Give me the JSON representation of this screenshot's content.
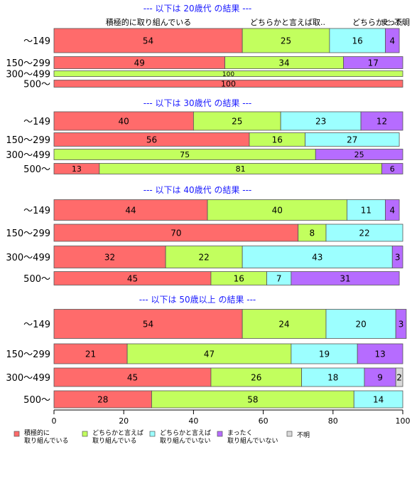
{
  "chart_data": {
    "type": "bar",
    "orientation": "horizontal",
    "stacked": true,
    "xlim": [
      0,
      100
    ],
    "x_ticks": [
      "0",
      "20",
      "40",
      "60",
      "80",
      "100"
    ],
    "categories": [
      "〜149",
      "150〜299",
      "300〜499",
      "500〜"
    ],
    "series": [
      {
        "name": "積極的に 取り組んでいる",
        "color": "#ff6b6b"
      },
      {
        "name": "どちらかと言えば 取り組んでいる",
        "color": "#c2ff5e"
      },
      {
        "name": "どちらかと言えば 取り組んでいない",
        "color": "#9cffff"
      },
      {
        "name": "まったく 取り組んでいない",
        "color": "#b66cff"
      },
      {
        "name": "不明",
        "color": "#d9d9d9"
      }
    ],
    "header_labels": [
      "積極的に取り組んでいる",
      "どちらかと言えば取..",
      "どちらかと..",
      "まった..",
      "不明"
    ],
    "panels": [
      {
        "title": "--- 以下は 20歳代 の結果 ---",
        "values": [
          [
            54,
            25,
            16,
            4,
            0
          ],
          [
            49,
            34,
            0,
            17,
            0
          ],
          [
            0,
            100,
            0,
            0,
            0
          ],
          [
            100,
            0,
            0,
            0,
            0
          ]
        ]
      },
      {
        "title": "--- 以下は 30歳代 の結果 ---",
        "values": [
          [
            40,
            25,
            23,
            12,
            0
          ],
          [
            56,
            16,
            27,
            0,
            0
          ],
          [
            0,
            75,
            0,
            25,
            0
          ],
          [
            13,
            81,
            0,
            6,
            0
          ]
        ]
      },
      {
        "title": "--- 以下は 40歳代 の結果 ---",
        "values": [
          [
            44,
            40,
            11,
            4,
            0
          ],
          [
            70,
            8,
            22,
            0,
            0
          ],
          [
            32,
            22,
            43,
            3,
            0
          ],
          [
            45,
            16,
            7,
            31,
            0
          ]
        ]
      },
      {
        "title": "--- 以下は 50歳以上 の結果 ---",
        "values": [
          [
            54,
            24,
            20,
            3,
            0
          ],
          [
            21,
            47,
            19,
            13,
            0
          ],
          [
            45,
            26,
            18,
            9,
            2
          ],
          [
            28,
            58,
            14,
            0,
            0
          ]
        ]
      }
    ],
    "colors": {
      "title": "#1a1aff",
      "text": "#000000",
      "bar_stroke": "#555555"
    }
  }
}
